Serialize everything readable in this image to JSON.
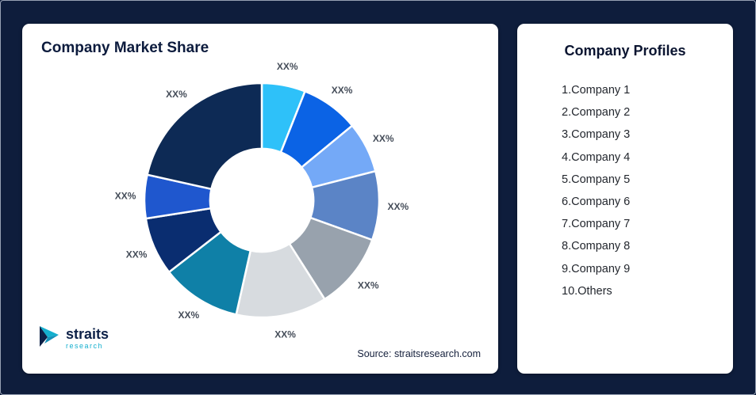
{
  "window": {
    "background": "#0E1D3C",
    "border_color": "#97A1B4"
  },
  "market_share_card": {
    "title": "Company Market Share",
    "source_text": "Source: straitsresearch.com",
    "logo": {
      "name": "straits",
      "sub": "research",
      "icon": "straits-research-logo-icon",
      "accent_color": "#14AFCE",
      "text_color": "#0D2148"
    }
  },
  "profiles_card": {
    "title": "Company Profiles",
    "items": [
      "1.Company 1",
      "2.Company 2",
      "3.Company 3",
      "4.Company 4",
      "5.Company 5",
      "6.Company 6",
      "7.Company 7",
      "8.Company 8",
      "9.Company 9",
      "10.Others"
    ]
  },
  "chart_data": {
    "type": "pie",
    "subtype": "donut",
    "title": "Company Market Share",
    "start_angle_deg": 0,
    "direction": "clockwise",
    "donut_hole_ratio": 0.44,
    "legend_position": "none",
    "value_labels_masked": true,
    "segments": [
      {
        "label": "XX%",
        "value": 6,
        "color": "#2EC1F9"
      },
      {
        "label": "XX%",
        "value": 8,
        "color": "#0B63E5"
      },
      {
        "label": "XX%",
        "value": 7,
        "color": "#74A9F7"
      },
      {
        "label": "XX%",
        "value": 9.5,
        "color": "#5B84C6"
      },
      {
        "label": "XX%",
        "value": 10.5,
        "color": "#98A2AD"
      },
      {
        "label": "XX%",
        "value": 12.5,
        "color": "#D7DBDF"
      },
      {
        "label": "XX%",
        "value": 11,
        "color": "#0F80A7"
      },
      {
        "label": "XX%",
        "value": 8,
        "color": "#0A2D70"
      },
      {
        "label": "XX%",
        "value": 6,
        "color": "#1F57CE"
      },
      {
        "label": "XX%",
        "value": 21.5,
        "color": "#0D2A55"
      }
    ]
  }
}
